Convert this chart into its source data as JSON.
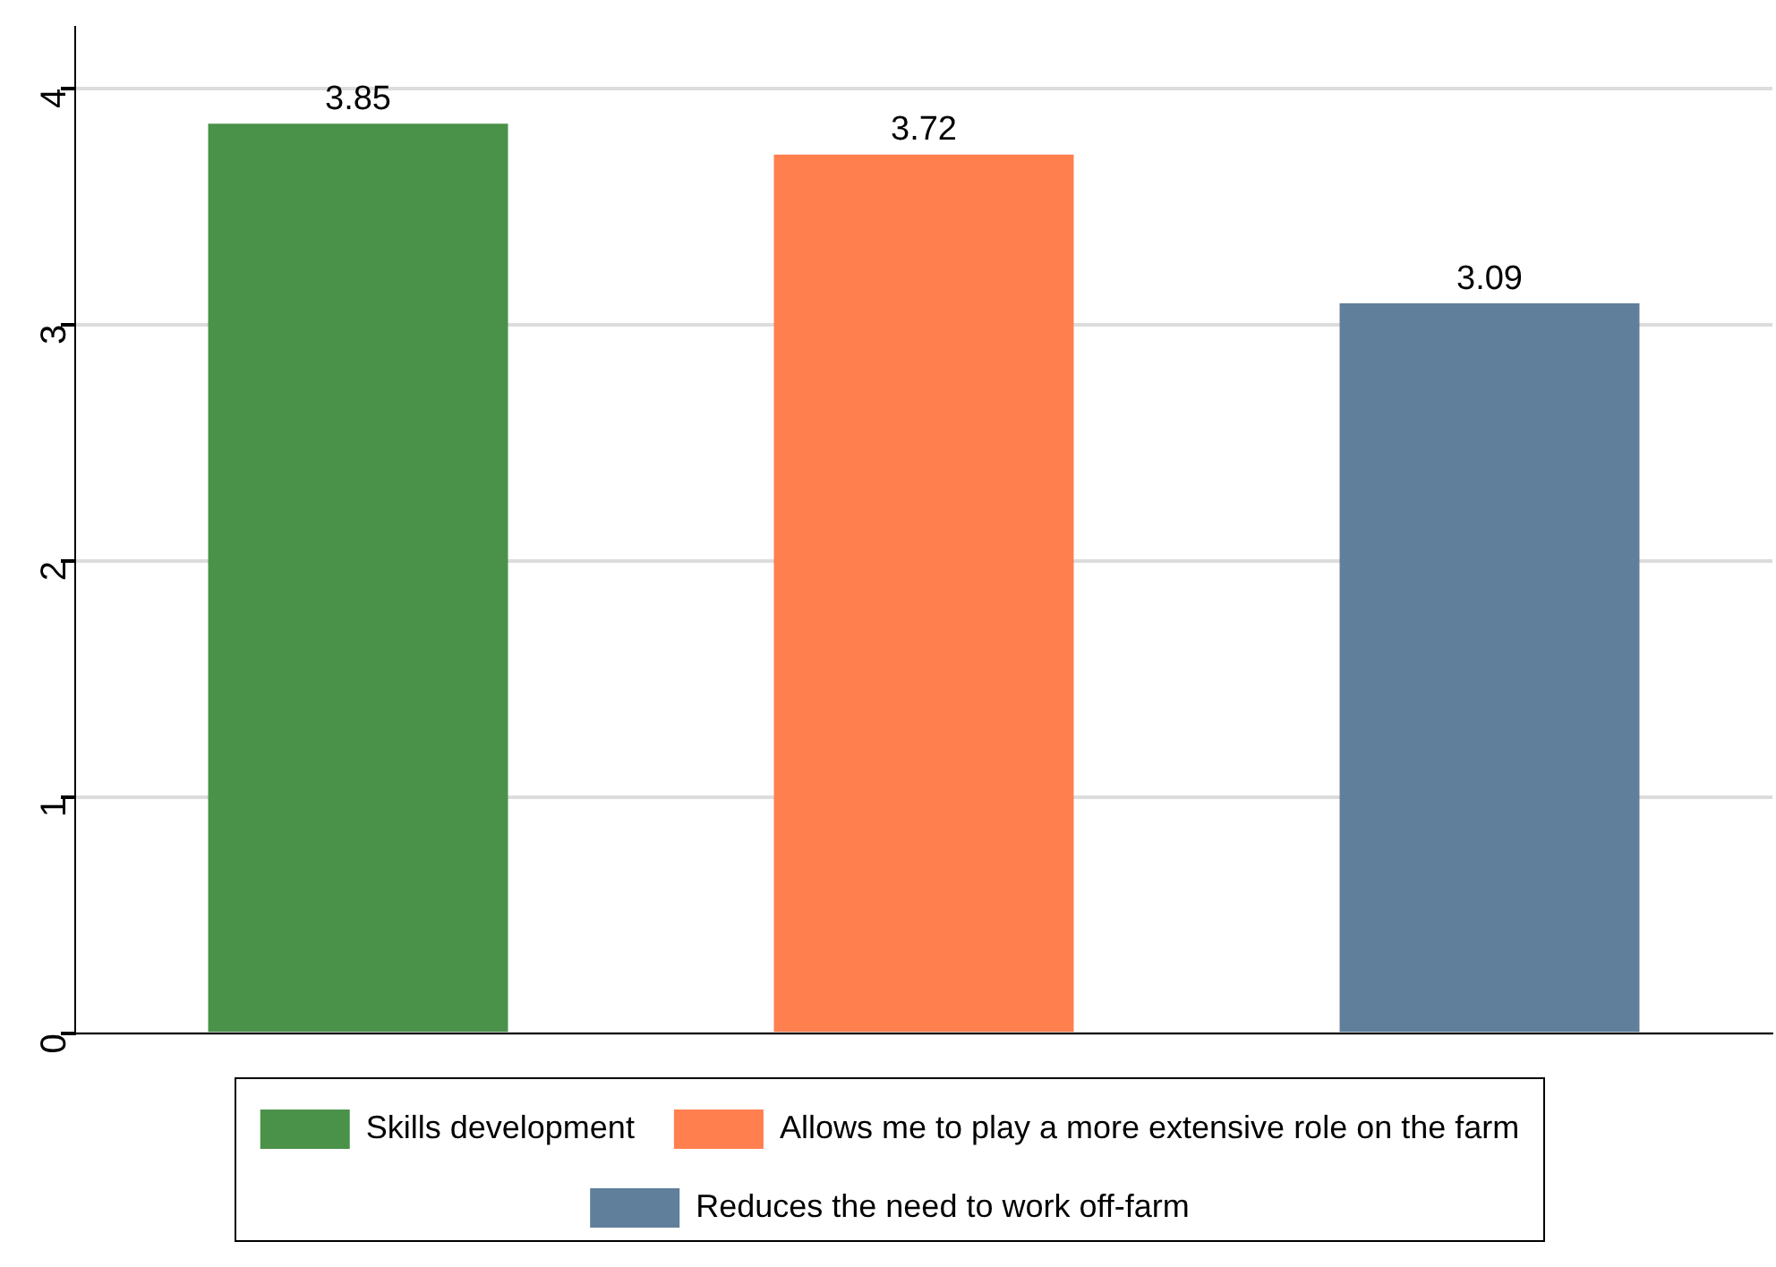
{
  "chart_data": {
    "type": "bar",
    "categories": [
      null,
      null,
      null
    ],
    "series": [
      {
        "name": "Skills development",
        "color": "#4a914a",
        "values": [
          3.85,
          null,
          null
        ]
      },
      {
        "name": "Allows me to play a more extensive role on the farm",
        "color": "#ff7f4f",
        "values": [
          null,
          3.72,
          null
        ]
      },
      {
        "name": "Reduces the need to work off-farm",
        "color": "#5f7f9a",
        "values": [
          null,
          null,
          3.09
        ]
      }
    ],
    "ylim": [
      0,
      4.26
    ],
    "yticks": [
      0,
      1,
      2,
      3,
      4
    ],
    "grid": "y",
    "legend": "bottom",
    "data_labels": true
  }
}
